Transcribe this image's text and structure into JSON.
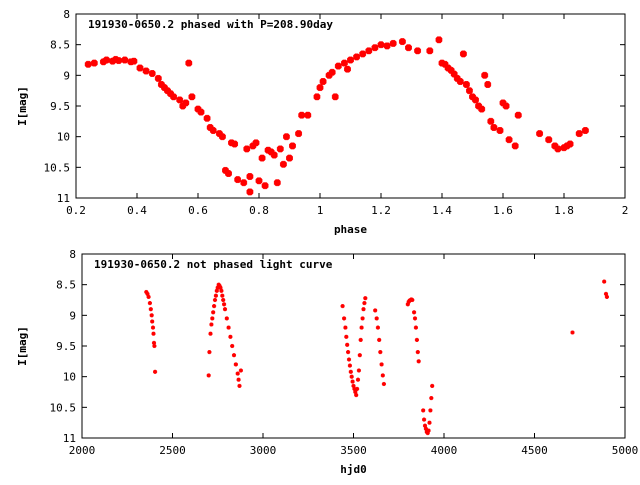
{
  "chart_data": [
    {
      "type": "scatter",
      "title": "191930-0650.2 phased with P=208.90day",
      "xlabel": "phase",
      "ylabel": "I[mag]",
      "xlim": [
        0.2,
        2.0
      ],
      "ylim": [
        8,
        11
      ],
      "y_inverted": true,
      "grid": false,
      "marker_color": "#ff0000",
      "xticks": [
        0.2,
        0.4,
        0.6,
        0.8,
        1,
        1.2,
        1.4,
        1.6,
        1.8,
        2
      ],
      "xtick_labels": [
        "0.2",
        "0.4",
        "0.6",
        "0.8",
        "1",
        "1.2",
        "1.4",
        "1.6",
        "1.8",
        "2"
      ],
      "yticks": [
        8,
        8.5,
        9,
        9.5,
        10,
        10.5,
        11
      ],
      "ytick_labels": [
        "8",
        "8.5",
        "9",
        "9.5",
        "10",
        "10.5",
        "11"
      ],
      "points": [
        [
          0.24,
          8.82
        ],
        [
          0.26,
          8.8
        ],
        [
          0.29,
          8.78
        ],
        [
          0.3,
          8.75
        ],
        [
          0.32,
          8.77
        ],
        [
          0.33,
          8.74
        ],
        [
          0.34,
          8.76
        ],
        [
          0.36,
          8.75
        ],
        [
          0.38,
          8.78
        ],
        [
          0.39,
          8.77
        ],
        [
          0.41,
          8.88
        ],
        [
          0.43,
          8.93
        ],
        [
          0.45,
          8.97
        ],
        [
          0.47,
          9.05
        ],
        [
          0.48,
          9.15
        ],
        [
          0.49,
          9.2
        ],
        [
          0.5,
          9.25
        ],
        [
          0.51,
          9.3
        ],
        [
          0.52,
          9.35
        ],
        [
          0.54,
          9.4
        ],
        [
          0.55,
          9.5
        ],
        [
          0.56,
          9.45
        ],
        [
          0.57,
          8.8
        ],
        [
          0.58,
          9.35
        ],
        [
          0.6,
          9.55
        ],
        [
          0.61,
          9.6
        ],
        [
          0.63,
          9.7
        ],
        [
          0.64,
          9.85
        ],
        [
          0.65,
          9.9
        ],
        [
          0.67,
          9.95
        ],
        [
          0.68,
          10.0
        ],
        [
          0.69,
          10.55
        ],
        [
          0.7,
          10.6
        ],
        [
          0.71,
          10.1
        ],
        [
          0.72,
          10.12
        ],
        [
          0.73,
          10.7
        ],
        [
          0.75,
          10.75
        ],
        [
          0.76,
          10.2
        ],
        [
          0.77,
          10.65
        ],
        [
          0.77,
          10.9
        ],
        [
          0.78,
          10.15
        ],
        [
          0.79,
          10.1
        ],
        [
          0.8,
          10.72
        ],
        [
          0.81,
          10.35
        ],
        [
          0.82,
          10.8
        ],
        [
          0.83,
          10.22
        ],
        [
          0.84,
          10.25
        ],
        [
          0.85,
          10.3
        ],
        [
          0.86,
          10.75
        ],
        [
          0.87,
          10.2
        ],
        [
          0.88,
          10.45
        ],
        [
          0.89,
          10.0
        ],
        [
          0.9,
          10.35
        ],
        [
          0.91,
          10.15
        ],
        [
          0.93,
          9.95
        ],
        [
          0.94,
          9.65
        ],
        [
          0.96,
          9.65
        ],
        [
          0.99,
          9.35
        ],
        [
          1.0,
          9.2
        ],
        [
          1.01,
          9.1
        ],
        [
          1.03,
          9.0
        ],
        [
          1.04,
          8.95
        ],
        [
          1.05,
          9.35
        ],
        [
          1.06,
          8.85
        ],
        [
          1.08,
          8.8
        ],
        [
          1.09,
          8.9
        ],
        [
          1.1,
          8.75
        ],
        [
          1.12,
          8.7
        ],
        [
          1.14,
          8.65
        ],
        [
          1.16,
          8.6
        ],
        [
          1.18,
          8.55
        ],
        [
          1.2,
          8.5
        ],
        [
          1.22,
          8.52
        ],
        [
          1.24,
          8.48
        ],
        [
          1.27,
          8.45
        ],
        [
          1.29,
          8.55
        ],
        [
          1.32,
          8.6
        ],
        [
          1.36,
          8.6
        ],
        [
          1.39,
          8.42
        ],
        [
          1.4,
          8.8
        ],
        [
          1.41,
          8.82
        ],
        [
          1.42,
          8.88
        ],
        [
          1.43,
          8.92
        ],
        [
          1.44,
          8.98
        ],
        [
          1.45,
          9.05
        ],
        [
          1.46,
          9.1
        ],
        [
          1.47,
          8.65
        ],
        [
          1.48,
          9.15
        ],
        [
          1.49,
          9.25
        ],
        [
          1.5,
          9.35
        ],
        [
          1.51,
          9.4
        ],
        [
          1.52,
          9.5
        ],
        [
          1.53,
          9.55
        ],
        [
          1.54,
          9.0
        ],
        [
          1.55,
          9.15
        ],
        [
          1.56,
          9.75
        ],
        [
          1.57,
          9.85
        ],
        [
          1.59,
          9.9
        ],
        [
          1.6,
          9.45
        ],
        [
          1.61,
          9.5
        ],
        [
          1.62,
          10.05
        ],
        [
          1.64,
          10.15
        ],
        [
          1.65,
          9.65
        ],
        [
          1.72,
          9.95
        ],
        [
          1.75,
          10.05
        ],
        [
          1.77,
          10.15
        ],
        [
          1.78,
          10.2
        ],
        [
          1.8,
          10.18
        ],
        [
          1.81,
          10.15
        ],
        [
          1.82,
          10.12
        ],
        [
          1.85,
          9.95
        ],
        [
          1.87,
          9.9
        ]
      ]
    },
    {
      "type": "scatter",
      "title": "191930-0650.2 not phased light curve",
      "xlabel": "hjd0",
      "ylabel": "I[mag]",
      "xlim": [
        2000,
        5000
      ],
      "ylim": [
        8,
        11
      ],
      "y_inverted": true,
      "grid": false,
      "marker_color": "#ff0000",
      "xticks": [
        2000,
        2500,
        3000,
        3500,
        4000,
        4500,
        5000
      ],
      "xtick_labels": [
        "2000",
        "2500",
        "3000",
        "3500",
        "4000",
        "4500",
        "5000"
      ],
      "yticks": [
        8,
        8.5,
        9,
        9.5,
        10,
        10.5,
        11
      ],
      "ytick_labels": [
        "8",
        "8.5",
        "9",
        "9.5",
        "10",
        "10.5",
        "11"
      ],
      "points": [
        [
          2355,
          8.62
        ],
        [
          2362,
          8.65
        ],
        [
          2368,
          8.7
        ],
        [
          2375,
          8.8
        ],
        [
          2380,
          8.9
        ],
        [
          2385,
          9.0
        ],
        [
          2388,
          9.1
        ],
        [
          2392,
          9.2
        ],
        [
          2395,
          9.3
        ],
        [
          2398,
          9.45
        ],
        [
          2400,
          9.5
        ],
        [
          2404,
          9.92
        ],
        [
          2700,
          9.98
        ],
        [
          2704,
          9.6
        ],
        [
          2710,
          9.3
        ],
        [
          2715,
          9.15
        ],
        [
          2720,
          9.05
        ],
        [
          2725,
          8.95
        ],
        [
          2730,
          8.85
        ],
        [
          2735,
          8.75
        ],
        [
          2740,
          8.68
        ],
        [
          2745,
          8.6
        ],
        [
          2750,
          8.55
        ],
        [
          2755,
          8.5
        ],
        [
          2760,
          8.52
        ],
        [
          2765,
          8.55
        ],
        [
          2770,
          8.6
        ],
        [
          2775,
          8.68
        ],
        [
          2780,
          8.75
        ],
        [
          2785,
          8.82
        ],
        [
          2790,
          8.9
        ],
        [
          2800,
          9.05
        ],
        [
          2810,
          9.2
        ],
        [
          2820,
          9.35
        ],
        [
          2830,
          9.5
        ],
        [
          2840,
          9.65
        ],
        [
          2850,
          9.8
        ],
        [
          2860,
          9.95
        ],
        [
          2865,
          10.05
        ],
        [
          2870,
          10.15
        ],
        [
          2878,
          9.9
        ],
        [
          3440,
          8.85
        ],
        [
          3448,
          9.05
        ],
        [
          3455,
          9.2
        ],
        [
          3460,
          9.35
        ],
        [
          3465,
          9.48
        ],
        [
          3470,
          9.6
        ],
        [
          3475,
          9.72
        ],
        [
          3480,
          9.82
        ],
        [
          3485,
          9.92
        ],
        [
          3490,
          10.0
        ],
        [
          3495,
          10.08
        ],
        [
          3500,
          10.15
        ],
        [
          3505,
          10.2
        ],
        [
          3510,
          10.25
        ],
        [
          3515,
          10.3
        ],
        [
          3520,
          10.2
        ],
        [
          3525,
          10.05
        ],
        [
          3530,
          9.9
        ],
        [
          3535,
          9.65
        ],
        [
          3540,
          9.4
        ],
        [
          3545,
          9.2
        ],
        [
          3550,
          9.05
        ],
        [
          3555,
          8.9
        ],
        [
          3560,
          8.8
        ],
        [
          3565,
          8.72
        ],
        [
          3620,
          8.92
        ],
        [
          3628,
          9.05
        ],
        [
          3635,
          9.2
        ],
        [
          3642,
          9.4
        ],
        [
          3648,
          9.6
        ],
        [
          3655,
          9.8
        ],
        [
          3662,
          9.98
        ],
        [
          3668,
          10.12
        ],
        [
          3800,
          8.82
        ],
        [
          3805,
          8.78
        ],
        [
          3810,
          8.76
        ],
        [
          3815,
          8.75
        ],
        [
          3820,
          8.74
        ],
        [
          3825,
          8.75
        ],
        [
          3835,
          8.95
        ],
        [
          3840,
          9.05
        ],
        [
          3845,
          9.2
        ],
        [
          3850,
          9.4
        ],
        [
          3855,
          9.6
        ],
        [
          3860,
          9.75
        ],
        [
          3885,
          10.55
        ],
        [
          3890,
          10.7
        ],
        [
          3895,
          10.8
        ],
        [
          3900,
          10.85
        ],
        [
          3905,
          10.9
        ],
        [
          3910,
          10.92
        ],
        [
          3915,
          10.88
        ],
        [
          3920,
          10.75
        ],
        [
          3925,
          10.55
        ],
        [
          3930,
          10.35
        ],
        [
          3935,
          10.15
        ],
        [
          4710,
          9.28
        ],
        [
          4885,
          8.45
        ],
        [
          4895,
          8.65
        ],
        [
          4900,
          8.7
        ]
      ]
    }
  ]
}
